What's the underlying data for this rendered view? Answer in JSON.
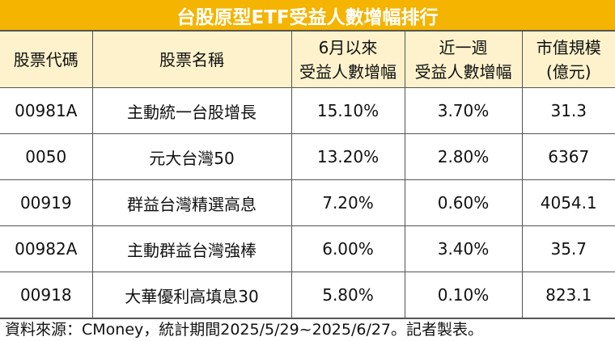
{
  "header": {
    "title": "台股原型ETF受益人數增幅排行"
  },
  "table": {
    "header": [
      [
        "股票代碼"
      ],
      [
        "股票名稱"
      ],
      [
        "6月以來",
        "受益人數增幅"
      ],
      [
        "近一週",
        "受益人數增幅"
      ],
      [
        "市值規模",
        "(億元)"
      ]
    ],
    "rows": [
      [
        "00981A",
        "主動統一台股增長",
        "15.10%",
        "3.70%",
        "31.3"
      ],
      [
        "0050",
        "元大台灣50",
        "13.20%",
        "2.80%",
        "6367"
      ],
      [
        "00919",
        "群益台灣精選高息",
        "7.20%",
        "0.60%",
        "4054.1"
      ],
      [
        "00982A",
        "主動群益台灣強棒",
        "6.00%",
        "3.40%",
        "35.7"
      ],
      [
        "00918",
        "大華優利高填息30",
        "5.80%",
        "0.10%",
        "823.1"
      ]
    ]
  },
  "footer": {
    "source": "資料來源：CMoney，統計期間2025/5/29~2025/6/27。記者製表。"
  }
}
